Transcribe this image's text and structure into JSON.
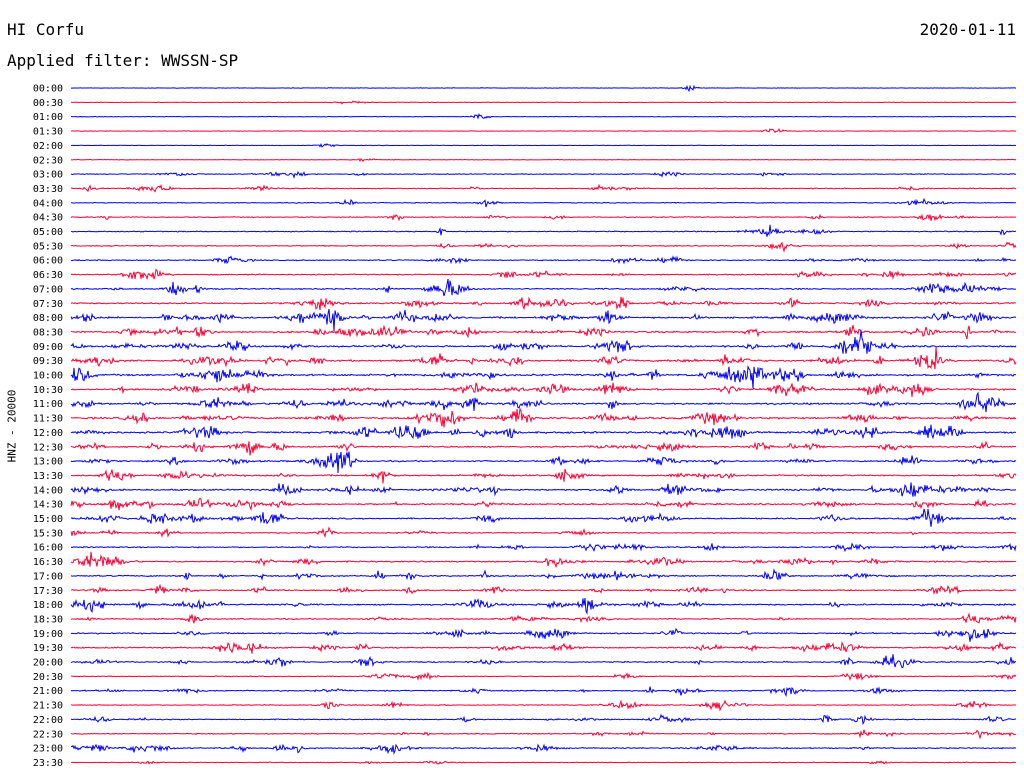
{
  "header": {
    "station": "HI Corfu",
    "date": "2020-01-11",
    "filter": "Applied filter: WWSSN-SP"
  },
  "chart_data": {
    "type": "line",
    "title": "HI Corfu",
    "subtitle": "Applied filter: WWSSN-SP",
    "ylabel": "HNZ - 20000",
    "xlabel": "",
    "grid": false,
    "colors": {
      "even_trace": "#0000ff",
      "odd_trace": "#ff0033"
    },
    "tick_labels": [
      "00:00",
      "00:30",
      "01:00",
      "01:30",
      "02:00",
      "02:30",
      "03:00",
      "03:30",
      "04:00",
      "04:30",
      "05:00",
      "05:30",
      "06:00",
      "06:30",
      "07:00",
      "07:30",
      "08:00",
      "08:30",
      "09:00",
      "09:30",
      "10:00",
      "10:30",
      "11:00",
      "11:30",
      "12:00",
      "12:30",
      "13:00",
      "13:30",
      "14:00",
      "14:30",
      "15:00",
      "15:30",
      "16:00",
      "16:30",
      "17:00",
      "17:30",
      "18:00",
      "18:30",
      "19:00",
      "19:30",
      "20:00",
      "20:30",
      "21:00",
      "21:30",
      "22:00",
      "22:30",
      "23:00",
      "23:30"
    ],
    "relative_activity": [
      0.02,
      0.02,
      0.02,
      0.03,
      0.02,
      0.03,
      0.25,
      0.3,
      0.2,
      0.3,
      0.35,
      0.3,
      0.4,
      0.45,
      0.55,
      0.7,
      0.8,
      0.85,
      0.8,
      0.85,
      0.9,
      0.85,
      0.85,
      0.9,
      0.9,
      0.7,
      0.6,
      0.65,
      0.8,
      0.7,
      0.6,
      0.35,
      0.45,
      0.55,
      0.6,
      0.55,
      0.65,
      0.45,
      0.55,
      0.6,
      0.45,
      0.2,
      0.4,
      0.25,
      0.35,
      0.4,
      0.45,
      0.15
    ]
  }
}
